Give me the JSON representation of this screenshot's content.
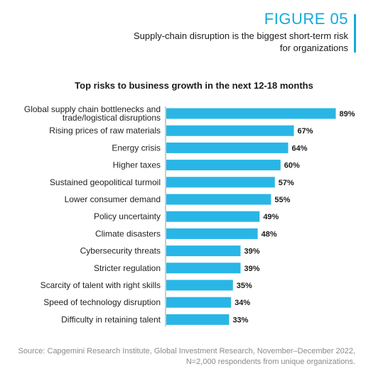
{
  "figure": {
    "label": "FIGURE 05",
    "subtitle_line1": "Supply-chain disruption is the biggest short-term risk",
    "subtitle_line2": "for organizations"
  },
  "colors": {
    "accent": "#12abdb",
    "bar": "#29b6e6"
  },
  "chart_data": {
    "type": "bar",
    "orientation": "horizontal",
    "title": "Top risks to business growth in the next 12-18 months",
    "categories": [
      [
        "Global supply chain bottlenecks and",
        "trade/logistical disruptions"
      ],
      [
        "Rising prices of raw materials"
      ],
      [
        "Energy crisis"
      ],
      [
        "Higher taxes"
      ],
      [
        "Sustained geopolitical turmoil"
      ],
      [
        "Lower consumer demand"
      ],
      [
        "Policy uncertainty"
      ],
      [
        "Climate disasters"
      ],
      [
        "Cybersecurity threats"
      ],
      [
        "Stricter regulation"
      ],
      [
        "Scarcity of talent with right skills"
      ],
      [
        "Speed of technology disruption"
      ],
      [
        "Difficulty in retaining talent"
      ]
    ],
    "values": [
      89,
      67,
      64,
      60,
      57,
      55,
      49,
      48,
      39,
      39,
      35,
      34,
      33
    ],
    "value_labels": [
      "89%",
      "67%",
      "64%",
      "60%",
      "57%",
      "55%",
      "49%",
      "48%",
      "39%",
      "39%",
      "35%",
      "34%",
      "33%"
    ],
    "unit": "%"
  },
  "source": {
    "line1": "Source: Capgemini Research Institute, Global Investment Research, November–December 2022,",
    "line2": "N=2,000 respondents from unique organizations."
  }
}
